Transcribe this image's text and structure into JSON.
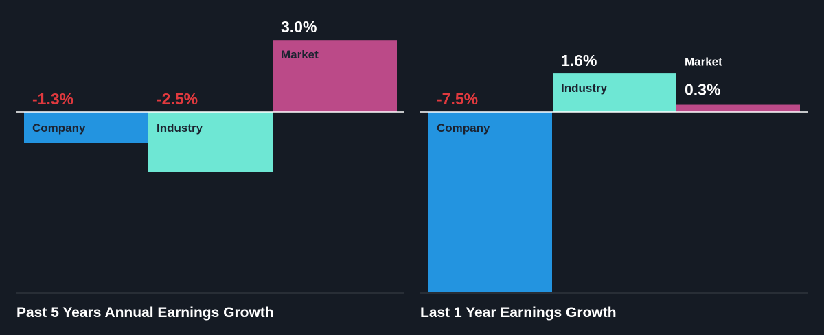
{
  "chart_data": [
    {
      "type": "bar",
      "title": "Past 5 Years Annual Earnings Growth",
      "categories": [
        "Company",
        "Industry",
        "Market"
      ],
      "values": [
        -1.3,
        -2.5,
        3.0
      ],
      "value_labels": [
        "-1.3%",
        "-2.5%",
        "3.0%"
      ],
      "unit": "%",
      "colors": [
        "#2394e0",
        "#6ee7d4",
        "#bb4a88"
      ],
      "ylim": [
        -7.5,
        3.0
      ]
    },
    {
      "type": "bar",
      "title": "Last 1 Year Earnings Growth",
      "categories": [
        "Company",
        "Industry",
        "Market"
      ],
      "values": [
        -7.5,
        1.6,
        0.3
      ],
      "value_labels": [
        "-7.5%",
        "1.6%",
        "0.3%"
      ],
      "unit": "%",
      "colors": [
        "#2394e0",
        "#6ee7d4",
        "#bb4a88"
      ],
      "ylim": [
        -7.5,
        3.0
      ]
    }
  ],
  "colors": {
    "background": "#151b24",
    "positive_label": "#ffffff",
    "negative_label": "#e0393e",
    "baseline": "#ffffff",
    "panel_divider": "#3a4048"
  }
}
